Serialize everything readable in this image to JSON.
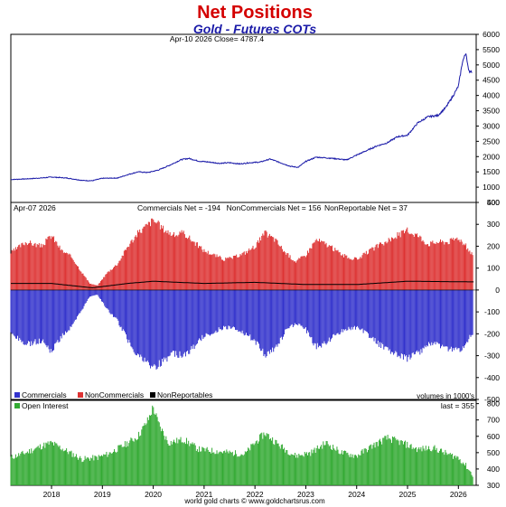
{
  "title": "Net Positions",
  "subtitle": "Gold - Futures COTs",
  "footer": "world gold charts © www.goldchartsrus.com",
  "colors": {
    "title": "#d40000",
    "subtitle": "#1a1aa8",
    "price_line": "#1a1aa8",
    "commercials": "#3333cc",
    "noncommercials": "#dd3333",
    "nonreportables": "#000000",
    "open_interest": "#33aa33"
  },
  "chart_data": [
    {
      "type": "line",
      "panel": "price",
      "header": "Apr-10  2026   Close= 4787.4",
      "ylim": [
        500,
        6000
      ],
      "yticks": [
        500,
        1000,
        1500,
        2000,
        2500,
        3000,
        3500,
        4000,
        4500,
        5000,
        5500,
        6000
      ],
      "x_range": [
        2017.2,
        2026.35
      ],
      "series": [
        {
          "x": [
            2017.2,
            2017.5,
            2017.8,
            2018.0,
            2018.3,
            2018.6,
            2018.8,
            2019.0,
            2019.3,
            2019.5,
            2019.7,
            2019.9,
            2020.1,
            2020.3,
            2020.55,
            2020.7,
            2020.9,
            2021.1,
            2021.3,
            2021.5,
            2021.7,
            2021.9,
            2022.1,
            2022.3,
            2022.5,
            2022.7,
            2022.85,
            2023.0,
            2023.2,
            2023.4,
            2023.6,
            2023.8,
            2024.0,
            2024.2,
            2024.4,
            2024.6,
            2024.8,
            2025.0,
            2025.2,
            2025.4,
            2025.6,
            2025.75,
            2025.9,
            2026.0,
            2026.08,
            2026.15,
            2026.2,
            2026.27
          ],
          "values": [
            1250,
            1270,
            1300,
            1330,
            1300,
            1220,
            1210,
            1290,
            1300,
            1410,
            1500,
            1480,
            1560,
            1700,
            1900,
            1940,
            1850,
            1820,
            1780,
            1800,
            1760,
            1800,
            1820,
            1920,
            1800,
            1680,
            1650,
            1840,
            1980,
            1960,
            1930,
            1890,
            2050,
            2200,
            2350,
            2450,
            2650,
            2700,
            3100,
            3300,
            3350,
            3600,
            4000,
            4300,
            5100,
            5400,
            4800,
            4787
          ]
        }
      ]
    },
    {
      "type": "bar",
      "panel": "net_positions",
      "header_date": "Apr-07  2026",
      "header_labels": [
        "Commercials Net = -194",
        "NonCommercials Net = 156",
        "NonReportable Net = 37"
      ],
      "ylim": [
        -500,
        400
      ],
      "yticks": [
        -500,
        -400,
        -300,
        -200,
        -100,
        0,
        100,
        200,
        300,
        400
      ],
      "legend": [
        "Commercials",
        "NonCommercials",
        "NonReportables"
      ],
      "legend_position": "bottom-left",
      "note": "volumes in 1000's",
      "x_range": [
        2017.2,
        2026.35
      ],
      "series": [
        {
          "name": "NonCommercials",
          "x": [
            2017.2,
            2017.5,
            2017.8,
            2018.0,
            2018.2,
            2018.4,
            2018.6,
            2018.75,
            2018.9,
            2019.1,
            2019.3,
            2019.5,
            2019.7,
            2019.9,
            2020.0,
            2020.2,
            2020.4,
            2020.6,
            2020.8,
            2021.0,
            2021.2,
            2021.4,
            2021.6,
            2021.8,
            2022.0,
            2022.2,
            2022.4,
            2022.6,
            2022.8,
            2023.0,
            2023.2,
            2023.4,
            2023.6,
            2023.8,
            2024.0,
            2024.2,
            2024.4,
            2024.6,
            2024.8,
            2025.0,
            2025.2,
            2025.4,
            2025.6,
            2025.8,
            2026.0,
            2026.15,
            2026.3
          ],
          "values": [
            170,
            220,
            200,
            250,
            180,
            150,
            80,
            30,
            20,
            80,
            120,
            200,
            260,
            300,
            320,
            280,
            250,
            260,
            220,
            180,
            160,
            140,
            150,
            170,
            200,
            260,
            230,
            170,
            130,
            160,
            230,
            210,
            180,
            150,
            140,
            170,
            200,
            220,
            250,
            270,
            250,
            210,
            220,
            220,
            240,
            200,
            156
          ]
        },
        {
          "name": "Commercials",
          "x": [
            2017.2,
            2017.5,
            2017.8,
            2018.0,
            2018.2,
            2018.4,
            2018.6,
            2018.75,
            2018.9,
            2019.1,
            2019.3,
            2019.5,
            2019.7,
            2019.9,
            2020.0,
            2020.2,
            2020.4,
            2020.6,
            2020.8,
            2021.0,
            2021.2,
            2021.4,
            2021.6,
            2021.8,
            2022.0,
            2022.2,
            2022.4,
            2022.6,
            2022.8,
            2023.0,
            2023.2,
            2023.4,
            2023.6,
            2023.8,
            2024.0,
            2024.2,
            2024.4,
            2024.6,
            2024.8,
            2025.0,
            2025.2,
            2025.4,
            2025.6,
            2025.8,
            2026.0,
            2026.15,
            2026.3
          ],
          "values": [
            -200,
            -250,
            -230,
            -280,
            -210,
            -170,
            -90,
            -30,
            -20,
            -90,
            -140,
            -230,
            -300,
            -340,
            -360,
            -320,
            -290,
            -300,
            -260,
            -210,
            -190,
            -170,
            -170,
            -200,
            -230,
            -300,
            -270,
            -190,
            -150,
            -180,
            -260,
            -240,
            -200,
            -180,
            -170,
            -200,
            -240,
            -270,
            -290,
            -310,
            -290,
            -250,
            -250,
            -270,
            -280,
            -240,
            -194
          ]
        },
        {
          "name": "NonReportables",
          "x": [
            2017.2,
            2018.0,
            2018.8,
            2019.5,
            2020.0,
            2021.0,
            2022.0,
            2023.0,
            2024.0,
            2025.0,
            2026.3
          ],
          "values": [
            30,
            30,
            10,
            30,
            40,
            30,
            35,
            25,
            25,
            40,
            37
          ]
        }
      ]
    },
    {
      "type": "bar",
      "panel": "open_interest",
      "legend": [
        "Open Interest"
      ],
      "legend_position": "top-left",
      "header_right": "last = 355",
      "ylim": [
        300,
        820
      ],
      "yticks": [
        300,
        400,
        500,
        600,
        700,
        800
      ],
      "x_range": [
        2017.2,
        2026.35
      ],
      "xticks": [
        "2018",
        "2019",
        "2020",
        "2021",
        "2022",
        "2023",
        "2024",
        "2025",
        "2026"
      ],
      "series": [
        {
          "name": "Open Interest",
          "x": [
            2017.2,
            2017.5,
            2017.8,
            2018.0,
            2018.3,
            2018.6,
            2018.9,
            2019.1,
            2019.4,
            2019.7,
            2019.9,
            2020.0,
            2020.1,
            2020.3,
            2020.6,
            2020.9,
            2021.2,
            2021.5,
            2021.8,
            2022.0,
            2022.2,
            2022.5,
            2022.8,
            2023.1,
            2023.4,
            2023.7,
            2024.0,
            2024.3,
            2024.6,
            2024.9,
            2025.2,
            2025.5,
            2025.8,
            2026.0,
            2026.15,
            2026.3
          ],
          "values": [
            470,
            500,
            540,
            560,
            510,
            460,
            470,
            490,
            540,
            600,
            700,
            780,
            680,
            560,
            580,
            520,
            510,
            500,
            490,
            560,
            620,
            540,
            480,
            500,
            560,
            500,
            480,
            540,
            590,
            560,
            520,
            530,
            490,
            470,
            420,
            355
          ]
        }
      ]
    }
  ]
}
